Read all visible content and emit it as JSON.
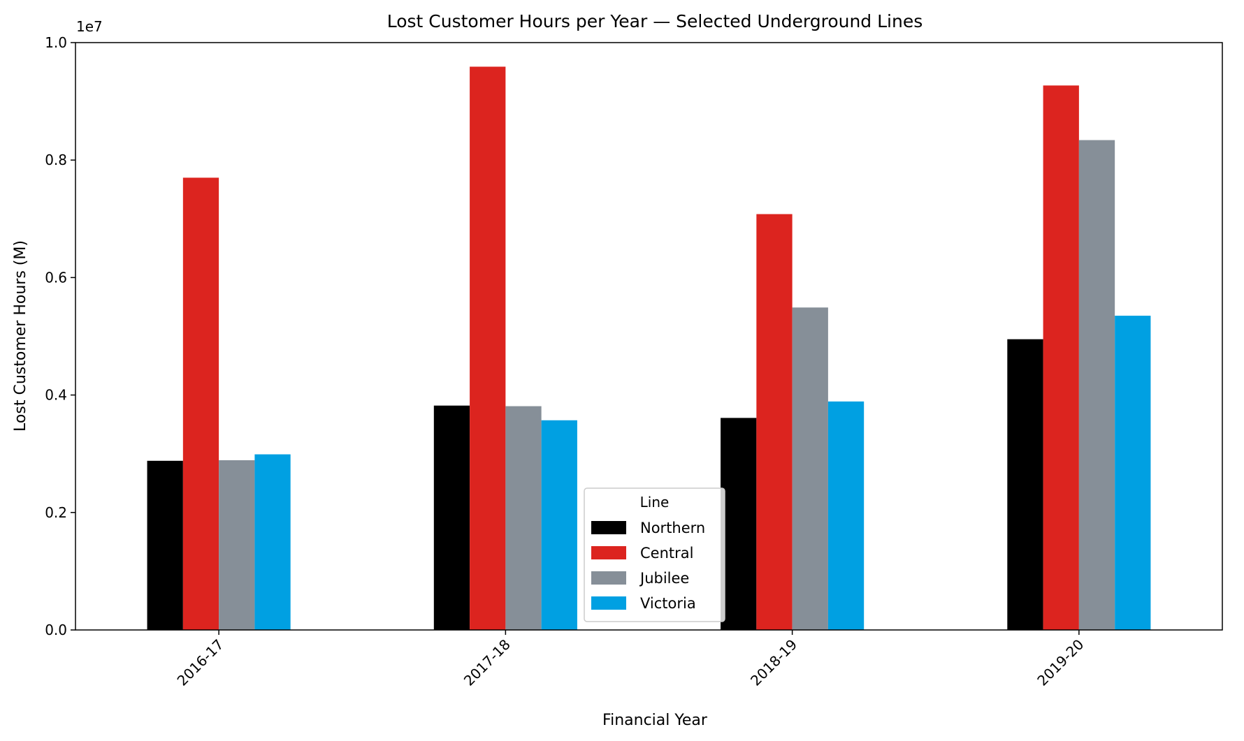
{
  "chart_data": {
    "type": "bar",
    "title": "Lost Customer Hours per Year — Selected Underground Lines",
    "xlabel": "Financial Year",
    "ylabel": "Lost Customer Hours (M)",
    "y_offset_label": "1e7",
    "ylim": [
      0,
      10000000
    ],
    "y_ticks": [
      0,
      2000000,
      4000000,
      6000000,
      8000000,
      10000000
    ],
    "y_tick_labels": [
      "0.0",
      "0.2",
      "0.4",
      "0.6",
      "0.8",
      "1.0"
    ],
    "categories": [
      "2016-17",
      "2017-18",
      "2018-19",
      "2019-20"
    ],
    "series": [
      {
        "name": "Northern",
        "color": "#000000",
        "values": [
          2880000,
          3820000,
          3610000,
          4950000
        ]
      },
      {
        "name": "Central",
        "color": "#dc241f",
        "values": [
          7700000,
          9590000,
          7080000,
          9270000
        ]
      },
      {
        "name": "Jubilee",
        "color": "#868f98",
        "values": [
          2890000,
          3810000,
          5490000,
          8340000
        ]
      },
      {
        "name": "Victoria",
        "color": "#00a0e2",
        "values": [
          2990000,
          3570000,
          3890000,
          5350000
        ]
      }
    ],
    "legend": {
      "title": "Line",
      "placement": "lower-center"
    },
    "grid": false
  }
}
